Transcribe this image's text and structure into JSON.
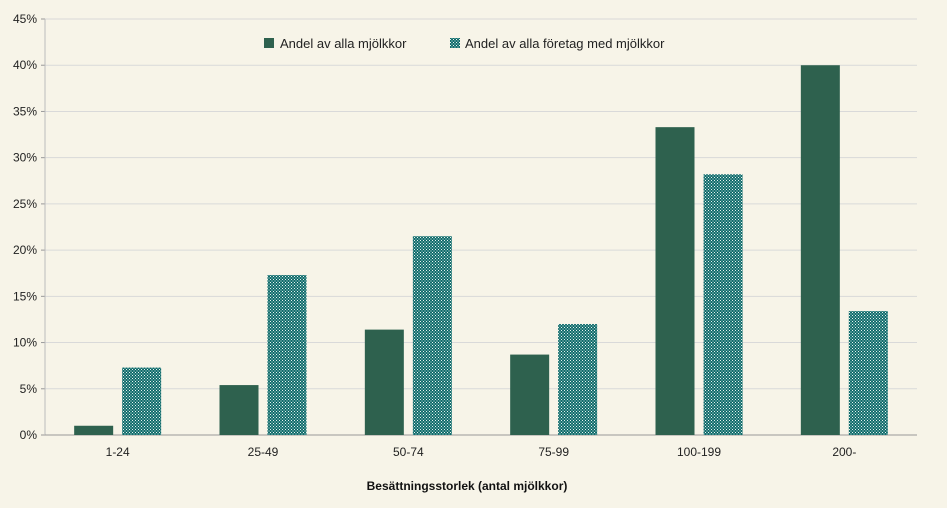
{
  "chart_data": {
    "type": "bar",
    "categories": [
      "1-24",
      "25-49",
      "50-74",
      "75-99",
      "100-199",
      "200-"
    ],
    "series": [
      {
        "name": "Andel av alla mjölkkor",
        "values": [
          1.0,
          5.4,
          11.4,
          8.7,
          33.3,
          40.0
        ],
        "color": "#2e614e",
        "pattern": "solid"
      },
      {
        "name": "Andel av alla företag med mjölkkor",
        "values": [
          7.3,
          17.3,
          21.5,
          12.0,
          28.2,
          13.4
        ],
        "color": "#0f6b6b",
        "pattern": "dotted"
      }
    ],
    "xlabel": "Besättningsstorlek (antal mjölkkor)",
    "ylabel": "",
    "ylim": [
      0,
      45
    ],
    "yticks": [
      "0%",
      "5%",
      "10%",
      "15%",
      "20%",
      "25%",
      "30%",
      "35%",
      "40%",
      "45%"
    ],
    "ytick_values": [
      0,
      5,
      10,
      15,
      20,
      25,
      30,
      35,
      40,
      45
    ],
    "grid": true,
    "legend_position": "top-center"
  }
}
